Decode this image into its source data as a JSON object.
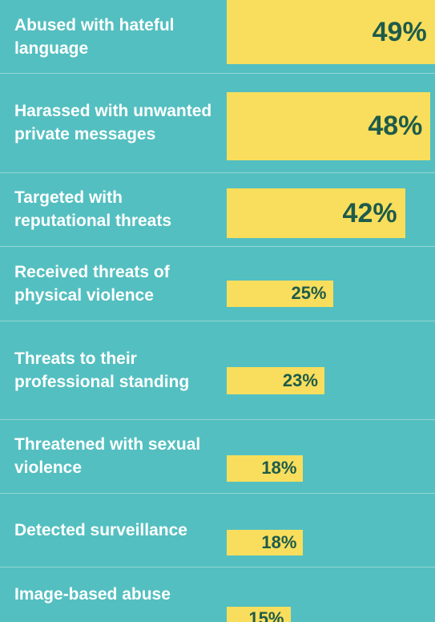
{
  "chart_data": {
    "type": "bar",
    "orientation": "horizontal",
    "color": "#f8de5c",
    "categories": [
      "Abused with hateful language",
      "Harassed with unwanted private messages",
      "Targeted with reputational threats",
      "Received threats of physical violence",
      "Threats to their professional standing",
      "Threatened with sexual violence",
      "Detected surveillance",
      "Image-based abuse"
    ],
    "values": [
      49,
      48,
      42,
      25,
      23,
      18,
      18,
      15
    ],
    "value_labels": [
      "49%",
      "48%",
      "42%",
      "25%",
      "23%",
      "18%",
      "18%",
      "15%"
    ]
  }
}
